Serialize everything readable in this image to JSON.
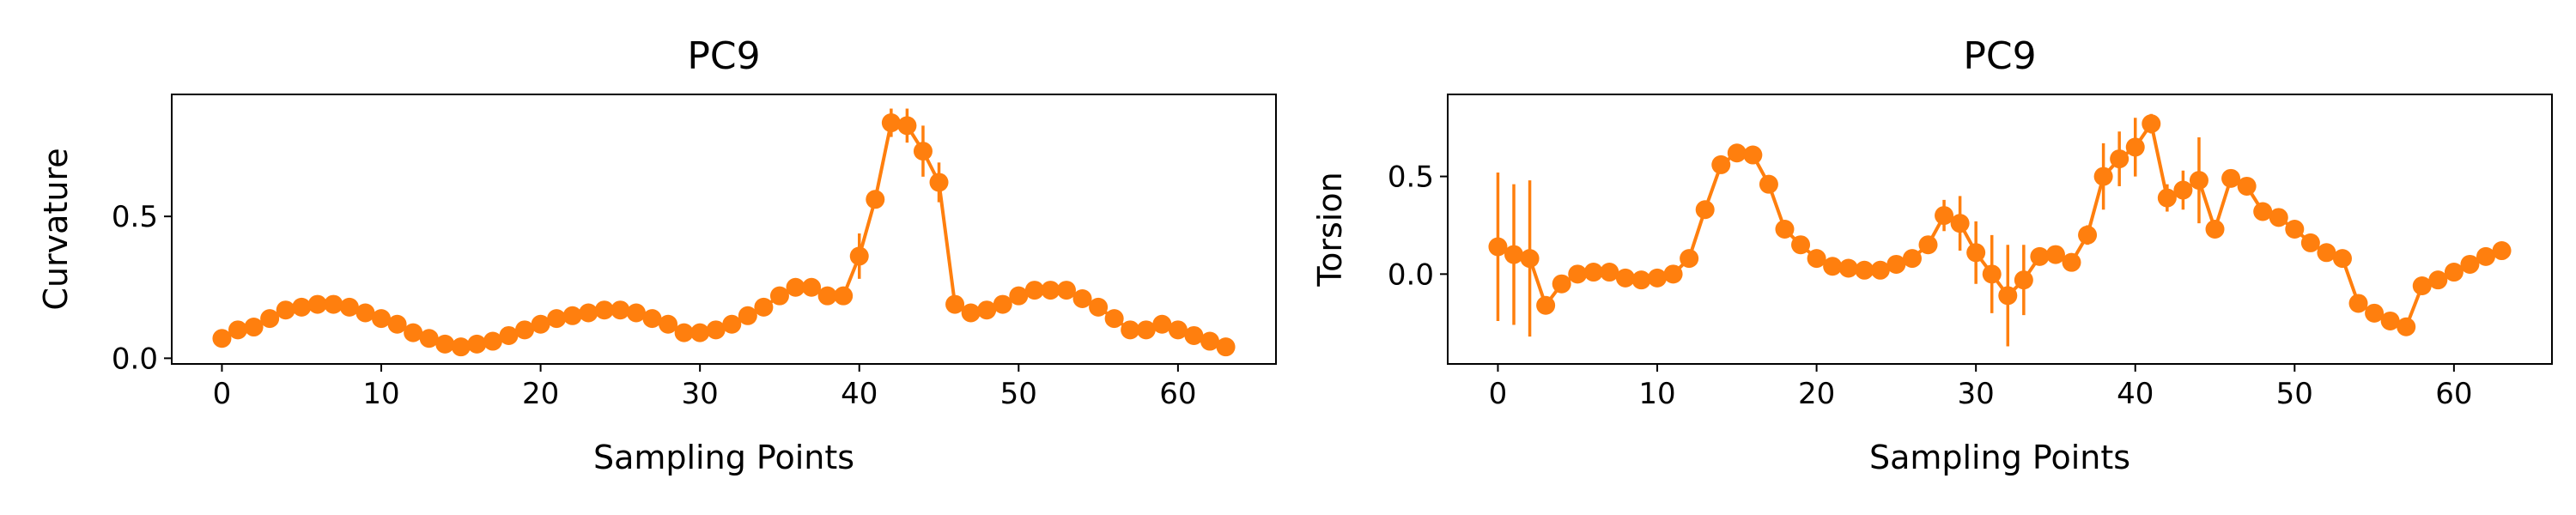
{
  "chart_data": [
    {
      "type": "line",
      "title": "PC9",
      "xlabel": "Sampling Points",
      "ylabel": "Curvature",
      "xlim": [
        -3.15,
        66.15
      ],
      "ylim": [
        -0.02,
        0.93
      ],
      "xticks": [
        0,
        10,
        20,
        30,
        40,
        50,
        60
      ],
      "yticks": [
        0.0,
        0.5
      ],
      "xtick_labels": [
        "0",
        "10",
        "20",
        "30",
        "40",
        "50",
        "60"
      ],
      "ytick_labels": [
        "0.0",
        "0.5"
      ],
      "grid": false,
      "series": [
        {
          "color": "#ff7f0e",
          "marker": "circle",
          "x": [
            0,
            1,
            2,
            3,
            4,
            5,
            6,
            7,
            8,
            9,
            10,
            11,
            12,
            13,
            14,
            15,
            16,
            17,
            18,
            19,
            20,
            21,
            22,
            23,
            24,
            25,
            26,
            27,
            28,
            29,
            30,
            31,
            32,
            33,
            34,
            35,
            36,
            37,
            38,
            39,
            40,
            41,
            42,
            43,
            44,
            45,
            46,
            47,
            48,
            49,
            50,
            51,
            52,
            53,
            54,
            55,
            56,
            57,
            58,
            59,
            60,
            61,
            62,
            63
          ],
          "y": [
            0.07,
            0.1,
            0.11,
            0.14,
            0.17,
            0.18,
            0.19,
            0.19,
            0.18,
            0.16,
            0.14,
            0.12,
            0.09,
            0.07,
            0.05,
            0.04,
            0.05,
            0.06,
            0.08,
            0.1,
            0.12,
            0.14,
            0.15,
            0.16,
            0.17,
            0.17,
            0.16,
            0.14,
            0.12,
            0.09,
            0.09,
            0.1,
            0.12,
            0.15,
            0.18,
            0.22,
            0.25,
            0.25,
            0.22,
            0.22,
            0.36,
            0.56,
            0.83,
            0.82,
            0.73,
            0.62,
            0.19,
            0.16,
            0.17,
            0.19,
            0.22,
            0.24,
            0.24,
            0.24,
            0.21,
            0.18,
            0.14,
            0.1,
            0.1,
            0.12,
            0.1,
            0.08,
            0.06,
            0.04
          ],
          "error": [
            0.01,
            0.01,
            0.01,
            0.01,
            0.01,
            0.01,
            0.01,
            0.01,
            0.01,
            0.01,
            0.01,
            0.01,
            0.01,
            0.01,
            0.01,
            0.01,
            0.01,
            0.01,
            0.01,
            0.01,
            0.01,
            0.01,
            0.01,
            0.01,
            0.01,
            0.01,
            0.01,
            0.01,
            0.01,
            0.01,
            0.01,
            0.01,
            0.01,
            0.01,
            0.01,
            0.01,
            0.01,
            0.01,
            0.01,
            0.01,
            0.08,
            0.02,
            0.05,
            0.06,
            0.09,
            0.07,
            0.01,
            0.01,
            0.01,
            0.01,
            0.01,
            0.01,
            0.01,
            0.01,
            0.01,
            0.01,
            0.01,
            0.01,
            0.01,
            0.01,
            0.01,
            0.01,
            0.01,
            0.01
          ]
        }
      ]
    },
    {
      "type": "line",
      "title": "PC9",
      "xlabel": "Sampling Points",
      "ylabel": "Torsion",
      "xlim": [
        -3.15,
        66.15
      ],
      "ylim": [
        -0.46,
        0.92
      ],
      "xticks": [
        0,
        10,
        20,
        30,
        40,
        50,
        60
      ],
      "yticks": [
        0.0,
        0.5
      ],
      "xtick_labels": [
        "0",
        "10",
        "20",
        "30",
        "40",
        "50",
        "60"
      ],
      "ytick_labels": [
        "0.0",
        "0.5"
      ],
      "grid": false,
      "series": [
        {
          "color": "#ff7f0e",
          "marker": "circle",
          "x": [
            0,
            1,
            2,
            3,
            4,
            5,
            6,
            7,
            8,
            9,
            10,
            11,
            12,
            13,
            14,
            15,
            16,
            17,
            18,
            19,
            20,
            21,
            22,
            23,
            24,
            25,
            26,
            27,
            28,
            29,
            30,
            31,
            32,
            33,
            34,
            35,
            36,
            37,
            38,
            39,
            40,
            41,
            42,
            43,
            44,
            45,
            46,
            47,
            48,
            49,
            50,
            51,
            52,
            53,
            54,
            55,
            56,
            57,
            58,
            59,
            60,
            61,
            62,
            63
          ],
          "y": [
            0.14,
            0.1,
            0.08,
            -0.16,
            -0.05,
            0.0,
            0.01,
            0.01,
            -0.02,
            -0.03,
            -0.02,
            0.0,
            0.08,
            0.33,
            0.56,
            0.62,
            0.61,
            0.46,
            0.23,
            0.15,
            0.08,
            0.04,
            0.03,
            0.02,
            0.02,
            0.05,
            0.08,
            0.15,
            0.3,
            0.26,
            0.11,
            0.0,
            -0.11,
            -0.03,
            0.09,
            0.1,
            0.06,
            0.2,
            0.5,
            0.59,
            0.65,
            0.77,
            0.39,
            0.43,
            0.48,
            0.23,
            0.49,
            0.45,
            0.32,
            0.29,
            0.23,
            0.16,
            0.11,
            0.08,
            -0.15,
            -0.2,
            -0.24,
            -0.27,
            -0.06,
            -0.03,
            0.01,
            0.05,
            0.09,
            0.12
          ],
          "error": [
            0.38,
            0.36,
            0.4,
            0.02,
            0.02,
            0.02,
            0.02,
            0.02,
            0.02,
            0.02,
            0.02,
            0.02,
            0.02,
            0.03,
            0.02,
            0.02,
            0.02,
            0.02,
            0.02,
            0.02,
            0.02,
            0.02,
            0.02,
            0.02,
            0.02,
            0.02,
            0.02,
            0.04,
            0.08,
            0.14,
            0.16,
            0.2,
            0.26,
            0.18,
            0.04,
            0.02,
            0.02,
            0.05,
            0.17,
            0.14,
            0.15,
            0.05,
            0.07,
            0.1,
            0.22,
            0.02,
            0.02,
            0.02,
            0.02,
            0.02,
            0.02,
            0.02,
            0.02,
            0.02,
            0.02,
            0.02,
            0.02,
            0.02,
            0.02,
            0.02,
            0.02,
            0.02,
            0.02,
            0.02
          ]
        }
      ]
    }
  ]
}
